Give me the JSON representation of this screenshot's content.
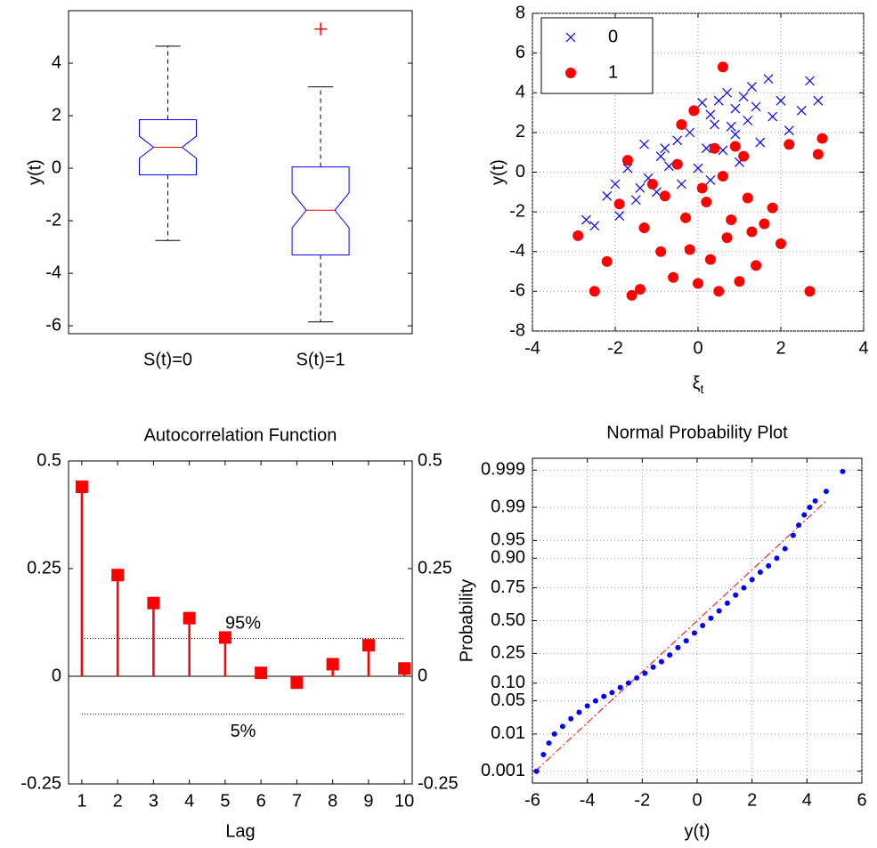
{
  "chart_data": [
    {
      "type": "box",
      "ylabel": "y(t)",
      "categories": [
        "S(t)=0",
        "S(t)=1"
      ],
      "ylim": [
        -6.3,
        6
      ],
      "yticks": [
        -6,
        -4,
        -2,
        0,
        2,
        4
      ],
      "grid": false,
      "box_color": "#0000ff",
      "median_color": "#ff0000",
      "whisker_color": "#000000",
      "outlier_color": "#ff0000",
      "boxes": [
        {
          "low": -2.75,
          "q1": -0.25,
          "median": 0.8,
          "q3": 1.85,
          "high": 4.65,
          "outliers": []
        },
        {
          "low": -5.85,
          "q1": -3.3,
          "median": -1.6,
          "q3": 0.05,
          "high": 3.1,
          "outliers": [
            5.3
          ]
        }
      ]
    },
    {
      "type": "scatter",
      "ylabel": "y(t)",
      "xlabel": {
        "symbol": "ξ",
        "subscript": "t"
      },
      "xlim": [
        -4,
        4
      ],
      "xticks": [
        -4,
        -2,
        0,
        2,
        4
      ],
      "ylim": [
        -8,
        8
      ],
      "yticks": [
        -8,
        -6,
        -4,
        -2,
        0,
        2,
        4,
        6,
        8
      ],
      "grid": true,
      "legend": "upper left",
      "series": [
        {
          "name": "0",
          "color": "#0000ff",
          "marker": "x",
          "x": [
            -2.7,
            -2.5,
            -2.2,
            -2,
            -1.9,
            -1.7,
            -1.5,
            -1.3,
            -1.2,
            -1,
            -0.9,
            -0.7,
            -0.5,
            -0.4,
            -0.2,
            0,
            0.1,
            0.2,
            0.3,
            0.4,
            0.5,
            0.6,
            0.7,
            0.8,
            0.9,
            1,
            1.1,
            1.2,
            1.3,
            1.5,
            1.7,
            1.8,
            2,
            2.2,
            2.5,
            2.7,
            2.9,
            -1.4,
            -0.8,
            0.3,
            0.9,
            1.4
          ],
          "values": [
            -2.4,
            -2.7,
            -1.2,
            -0.6,
            -2.2,
            0.2,
            -1.4,
            1.4,
            -0.3,
            -1,
            0.8,
            0.3,
            1.6,
            -0.6,
            2,
            0.2,
            3.5,
            1.2,
            -0.4,
            2.4,
            3.6,
            1.1,
            4,
            2.3,
            3.2,
            0.5,
            3.8,
            2.6,
            4.3,
            1.5,
            4.7,
            2.8,
            3.6,
            2.1,
            3.1,
            4.6,
            3.6,
            -0.8,
            1.2,
            2.9,
            1.9,
            3.3
          ]
        },
        {
          "name": "1",
          "color": "#ff0000",
          "marker": "o",
          "x": [
            -2.9,
            -2.5,
            -2.2,
            -1.9,
            -1.6,
            -1.4,
            -1.3,
            -1.1,
            -0.9,
            -0.8,
            -0.6,
            -0.5,
            -0.3,
            -0.2,
            0,
            0.1,
            0.2,
            0.3,
            0.4,
            0.5,
            0.6,
            0.7,
            0.8,
            1,
            1.1,
            1.2,
            1.4,
            1.6,
            1.8,
            2,
            2.2,
            2.7,
            2.9,
            3,
            -1.7,
            -0.4,
            0.6,
            1.3,
            -0.1,
            0.9
          ],
          "values": [
            -3.2,
            -6,
            -4.5,
            -1.6,
            -6.2,
            -5.9,
            -2.8,
            -0.6,
            -4,
            -1.2,
            -5.3,
            0.4,
            -2.3,
            -3.9,
            -5.6,
            -0.8,
            -1.5,
            -4.4,
            1.2,
            -6,
            5.3,
            -3.3,
            -2.4,
            -5.5,
            0.8,
            -1.3,
            -4.7,
            -2.6,
            -1.8,
            -3.6,
            1.4,
            -6,
            0.9,
            1.7,
            0.6,
            2.4,
            -0.2,
            -3,
            3.1,
            1.3
          ]
        }
      ]
    },
    {
      "type": "stem",
      "title": "Autocorrelation Function",
      "xlabel": "Lag",
      "x": [
        1,
        2,
        3,
        4,
        5,
        6,
        7,
        8,
        9,
        10
      ],
      "values": [
        0.44,
        0.235,
        0.17,
        0.135,
        0.09,
        0.008,
        -0.015,
        0.028,
        0.072,
        0.018
      ],
      "color": "#ff0000",
      "xlim": [
        0.63,
        10.22
      ],
      "xticks": [
        1,
        2,
        3,
        4,
        5,
        6,
        7,
        8,
        9,
        10
      ],
      "ylim": [
        -0.25,
        0.5
      ],
      "yticks": [
        -0.25,
        0,
        0.25,
        0.5
      ],
      "y2lim": [
        -0.25,
        0.5
      ],
      "y2ticks": [
        -0.25,
        0,
        0.25,
        0.5
      ],
      "grid": false,
      "bounds": [
        0.088,
        -0.088
      ],
      "bound_labels": [
        "95%",
        "5%"
      ]
    },
    {
      "type": "probability",
      "title": "Normal Probability Plot",
      "xlabel": "y(t)",
      "ylabel": "Probability",
      "yscale": "probit",
      "grid": true,
      "color": "#0000ff",
      "line_color": "#ff0000",
      "xlim": [
        -6,
        6
      ],
      "xticks": [
        -6,
        -4,
        -2,
        0,
        2,
        4,
        6
      ],
      "ylim": [
        0.00043,
        0.99957
      ],
      "yticks": [
        0.001,
        0.01,
        0.05,
        {
          "value": 0.1,
          "label": "0.10"
        },
        0.25,
        {
          "value": 0.5,
          "label": "0.50"
        },
        0.75,
        {
          "value": 0.9,
          "label": "0.90"
        },
        0.95,
        0.99,
        0.999
      ],
      "x": [
        -5.85,
        -5.6,
        -5.4,
        -5.2,
        -4.9,
        -4.6,
        -4.3,
        -4,
        -3.7,
        -3.4,
        -3.1,
        -2.8,
        -2.5,
        -2.2,
        -1.9,
        -1.6,
        -1.3,
        -1,
        -0.7,
        -0.4,
        -0.1,
        0.2,
        0.5,
        0.8,
        1.1,
        1.4,
        1.7,
        2,
        2.3,
        2.6,
        2.9,
        3.2,
        3.5,
        3.7,
        3.9,
        4.1,
        4.3,
        4.7,
        5.3
      ],
      "values": [
        0.001,
        0.003,
        0.006,
        0.01,
        0.015,
        0.022,
        0.03,
        0.04,
        0.05,
        0.06,
        0.07,
        0.085,
        0.1,
        0.12,
        0.14,
        0.17,
        0.2,
        0.24,
        0.29,
        0.34,
        0.4,
        0.46,
        0.52,
        0.58,
        0.64,
        0.7,
        0.75,
        0.8,
        0.84,
        0.87,
        0.9,
        0.93,
        0.96,
        0.975,
        0.985,
        0.99,
        0.993,
        0.996,
        0.9989
      ],
      "fit_line": {
        "x": [
          -5.9,
          4.7
        ],
        "values": [
          0.001,
          0.993
        ]
      }
    }
  ]
}
